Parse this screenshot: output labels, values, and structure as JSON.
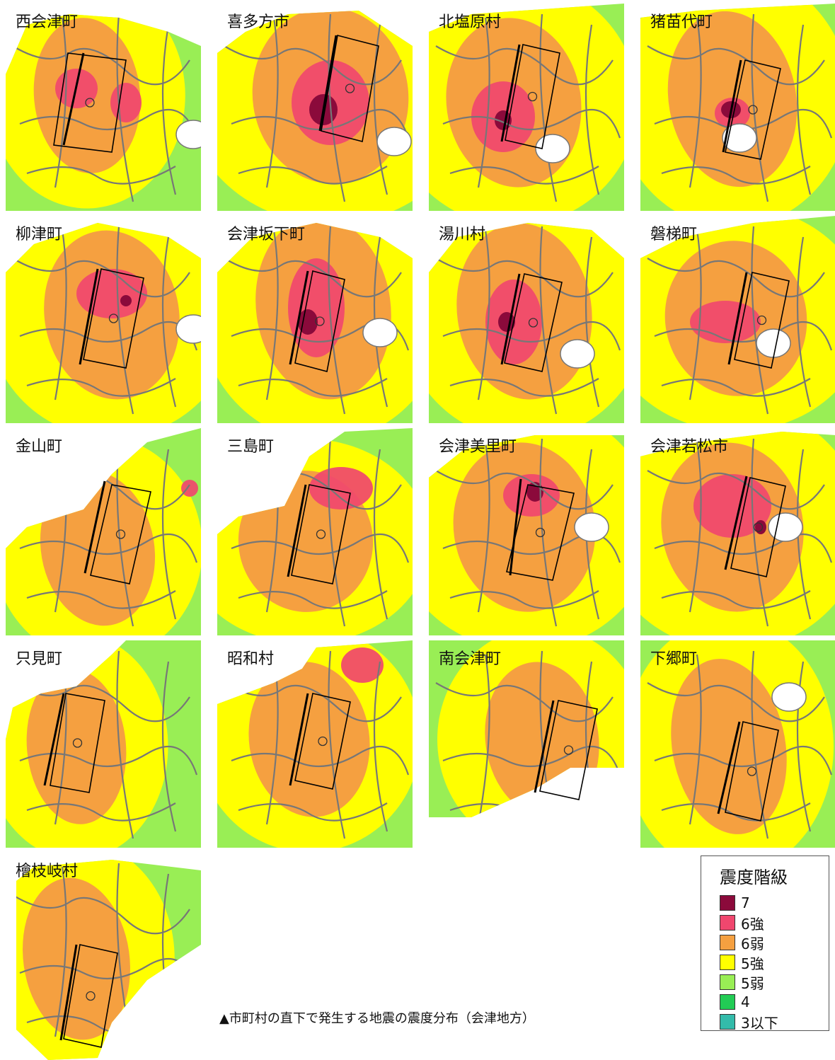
{
  "panels": [
    {
      "label": "西会津町"
    },
    {
      "label": "喜多方市"
    },
    {
      "label": "北塩原村"
    },
    {
      "label": "猪苗代町"
    },
    {
      "label": "柳津町"
    },
    {
      "label": "会津坂下町"
    },
    {
      "label": "湯川村"
    },
    {
      "label": "磐梯町"
    },
    {
      "label": "金山町"
    },
    {
      "label": "三島町"
    },
    {
      "label": "会津美里町"
    },
    {
      "label": "会津若松市"
    },
    {
      "label": "只見町"
    },
    {
      "label": "昭和村"
    },
    {
      "label": "南会津町"
    },
    {
      "label": "下郷町"
    },
    {
      "label": "檜枝岐村"
    }
  ],
  "legend": {
    "title": "震度階級",
    "items": [
      {
        "label": "7",
        "color": "#8b0a3b"
      },
      {
        "label": "6強",
        "color": "#f0476e"
      },
      {
        "label": "6弱",
        "color": "#f5a040"
      },
      {
        "label": "5強",
        "color": "#ffff00"
      },
      {
        "label": "5弱",
        "color": "#99ee55"
      },
      {
        "label": "4",
        "color": "#22cc55"
      },
      {
        "label": "3以下",
        "color": "#33bbaa"
      }
    ]
  },
  "caption": "▲市町村の直下で発生する地震の震度分布（会津地方）"
}
